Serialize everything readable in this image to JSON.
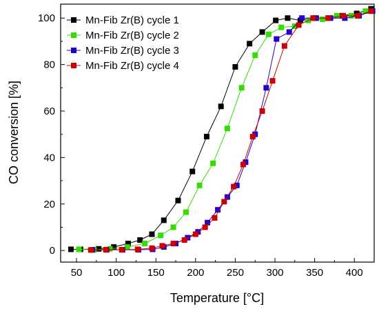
{
  "chart_data": {
    "type": "scatter",
    "xlabel": "Temperature [°C]",
    "ylabel": "CO conversion [%]",
    "xlim": [
      30,
      425
    ],
    "ylim": [
      -5,
      106
    ],
    "x_ticks": [
      50,
      100,
      150,
      200,
      250,
      300,
      350,
      400
    ],
    "y_ticks": [
      0,
      20,
      40,
      60,
      80,
      100
    ],
    "grid": false,
    "legend_position": "top-left",
    "series": [
      {
        "name": "Mn-Fib Zr(B) cycle 1",
        "color": "#000000",
        "x": [
          43,
          55,
          78,
          97,
          115,
          130,
          145,
          160,
          178,
          196,
          214,
          232,
          250,
          268,
          284,
          301,
          316,
          332,
          350,
          368,
          385,
          403,
          421
        ],
        "y": [
          0.5,
          0.5,
          0.7,
          1.5,
          3,
          4.5,
          7,
          13,
          21.5,
          34,
          49,
          62,
          79,
          89,
          94,
          99,
          100,
          99,
          100,
          100,
          101,
          102,
          104
        ]
      },
      {
        "name": "Mn-Fib Zr(B) cycle 2",
        "color": "#33dd00",
        "x": [
          53,
          72,
          92,
          114,
          136,
          156,
          172,
          188,
          205,
          222,
          240,
          258,
          275,
          292,
          308,
          325,
          342,
          360,
          378,
          396,
          414
        ],
        "y": [
          0.5,
          0.3,
          0.7,
          1.5,
          3,
          6.5,
          10,
          16.5,
          28,
          37.5,
          52.5,
          70,
          84,
          93,
          96,
          96.5,
          99,
          99.5,
          101,
          101,
          103
        ]
      },
      {
        "name": "Mn-Fib Zr(B) cycle 3",
        "color": "#2200cc",
        "x": [
          70,
          88,
          108,
          128,
          146,
          160,
          175,
          190,
          203,
          215,
          228,
          240,
          252,
          263,
          275,
          289,
          302,
          318,
          334,
          352,
          370,
          388,
          406,
          423
        ],
        "y": [
          0.3,
          0.3,
          0.3,
          0.3,
          0.5,
          1.5,
          3,
          5.5,
          8,
          12,
          17.5,
          23,
          28,
          38,
          50,
          70,
          91,
          94,
          100,
          100,
          100,
          100,
          101,
          103
        ]
      },
      {
        "name": "Mn-Fib Zr(B) cycle 4",
        "color": "#cc0000",
        "x": [
          68,
          87,
          107,
          127,
          145,
          158,
          172,
          186,
          200,
          212,
          224,
          236,
          248,
          260,
          272,
          284,
          297,
          312,
          330,
          348,
          367,
          386,
          404,
          421
        ],
        "y": [
          0.2,
          0.3,
          0.3,
          0.5,
          1,
          2,
          3,
          4.5,
          7,
          10,
          14,
          21,
          27.5,
          37,
          49,
          60,
          73,
          88,
          97,
          100,
          100,
          101,
          101,
          103
        ]
      }
    ]
  }
}
